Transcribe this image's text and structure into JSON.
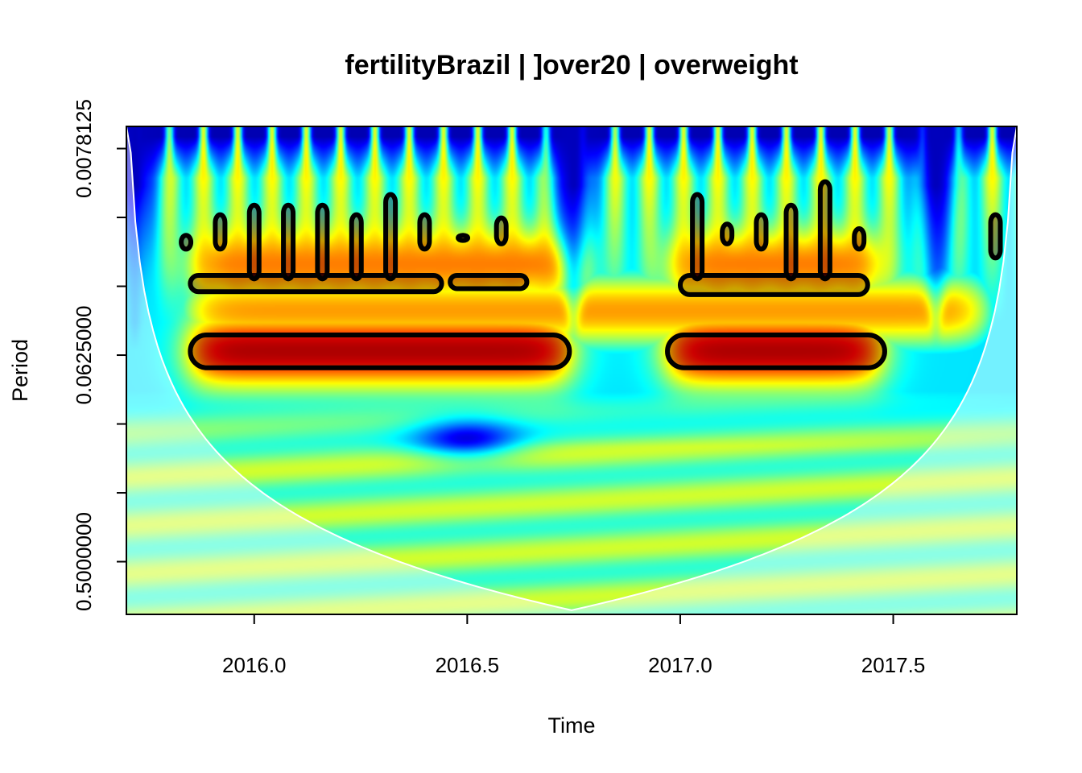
{
  "chart_data": {
    "type": "heatmap",
    "subtype": "wavelet power spectrum",
    "title": "fertilityBrazil | ]over20 | overweight",
    "xlabel": "Time",
    "ylabel": "Period",
    "xlim": [
      2015.7,
      2017.79
    ],
    "x_ticks": [
      2016.0,
      2016.5,
      2017.0,
      2017.5
    ],
    "x_tick_labels": [
      "2016.0",
      "2016.5",
      "2017.0",
      "2017.5"
    ],
    "y_scale": "log2",
    "ylim": [
      0.00625,
      0.85
    ],
    "y_ticks": [
      0.0078125,
      0.015625,
      0.03125,
      0.0625,
      0.125,
      0.25,
      0.5
    ],
    "y_tick_labels": [
      "0.0078125",
      "",
      "",
      "0.0625000",
      "",
      "",
      "0.5000000"
    ],
    "colormap": [
      "#00007f",
      "#0000ff",
      "#007fff",
      "#00ffff",
      "#7fff7f",
      "#ffff00",
      "#ff7f00",
      "#ff0000",
      "#7f0000"
    ],
    "cone_of_influence": true,
    "high_power_bands": [
      {
        "period": 0.06,
        "from": 2015.85,
        "to": 2016.74,
        "level": 0.92
      },
      {
        "period": 0.06,
        "from": 2016.97,
        "to": 2017.47,
        "level": 0.92
      },
      {
        "period": 0.025,
        "from": 2015.85,
        "to": 2016.77,
        "level": 0.75
      },
      {
        "period": 0.025,
        "from": 2016.97,
        "to": 2017.48,
        "level": 0.75
      }
    ],
    "low_power_gaps_at_small_period": [
      2015.72,
      2016.75,
      2017.6
    ],
    "significance_contours": [
      {
        "kind": "band",
        "from": 2015.85,
        "to": 2016.74,
        "period_low": 0.051,
        "period_high": 0.071
      },
      {
        "kind": "band",
        "from": 2016.97,
        "to": 2017.48,
        "period_low": 0.051,
        "period_high": 0.071
      },
      {
        "kind": "band",
        "from": 2015.85,
        "to": 2016.44,
        "period_low": 0.028,
        "period_high": 0.033
      },
      {
        "kind": "band",
        "from": 2016.46,
        "to": 2016.64,
        "period_low": 0.028,
        "period_high": 0.032
      },
      {
        "kind": "band",
        "from": 2017.0,
        "to": 2017.44,
        "period_low": 0.028,
        "period_high": 0.034
      },
      {
        "kind": "spike",
        "x": 2015.84,
        "period_top": 0.0187,
        "period_bottom": 0.0215
      },
      {
        "kind": "spike",
        "x": 2015.92,
        "period_top": 0.0152,
        "period_bottom": 0.0215
      },
      {
        "kind": "spike",
        "x": 2016.0,
        "period_top": 0.0138,
        "period_bottom": 0.029
      },
      {
        "kind": "spike",
        "x": 2016.08,
        "period_top": 0.0138,
        "period_bottom": 0.029
      },
      {
        "kind": "spike",
        "x": 2016.16,
        "period_top": 0.0138,
        "period_bottom": 0.029
      },
      {
        "kind": "spike",
        "x": 2016.24,
        "period_top": 0.0152,
        "period_bottom": 0.029
      },
      {
        "kind": "spike",
        "x": 2016.32,
        "period_top": 0.0124,
        "period_bottom": 0.029
      },
      {
        "kind": "spike",
        "x": 2016.4,
        "period_top": 0.0152,
        "period_bottom": 0.0215
      },
      {
        "kind": "spike",
        "x": 2016.49,
        "period_top": 0.0187,
        "period_bottom": 0.0197
      },
      {
        "kind": "spike",
        "x": 2016.58,
        "period_top": 0.0157,
        "period_bottom": 0.0204
      },
      {
        "kind": "spike",
        "x": 2017.04,
        "period_top": 0.0124,
        "period_bottom": 0.029
      },
      {
        "kind": "spike",
        "x": 2017.11,
        "period_top": 0.0167,
        "period_bottom": 0.0204
      },
      {
        "kind": "spike",
        "x": 2017.19,
        "period_top": 0.0152,
        "period_bottom": 0.0215
      },
      {
        "kind": "spike",
        "x": 2017.26,
        "period_top": 0.0138,
        "period_bottom": 0.029
      },
      {
        "kind": "spike",
        "x": 2017.34,
        "period_top": 0.0109,
        "period_bottom": 0.029
      },
      {
        "kind": "spike",
        "x": 2017.42,
        "period_top": 0.0175,
        "period_bottom": 0.0215
      },
      {
        "kind": "spike",
        "x": 2017.74,
        "period_top": 0.0152,
        "period_bottom": 0.0235
      }
    ]
  }
}
